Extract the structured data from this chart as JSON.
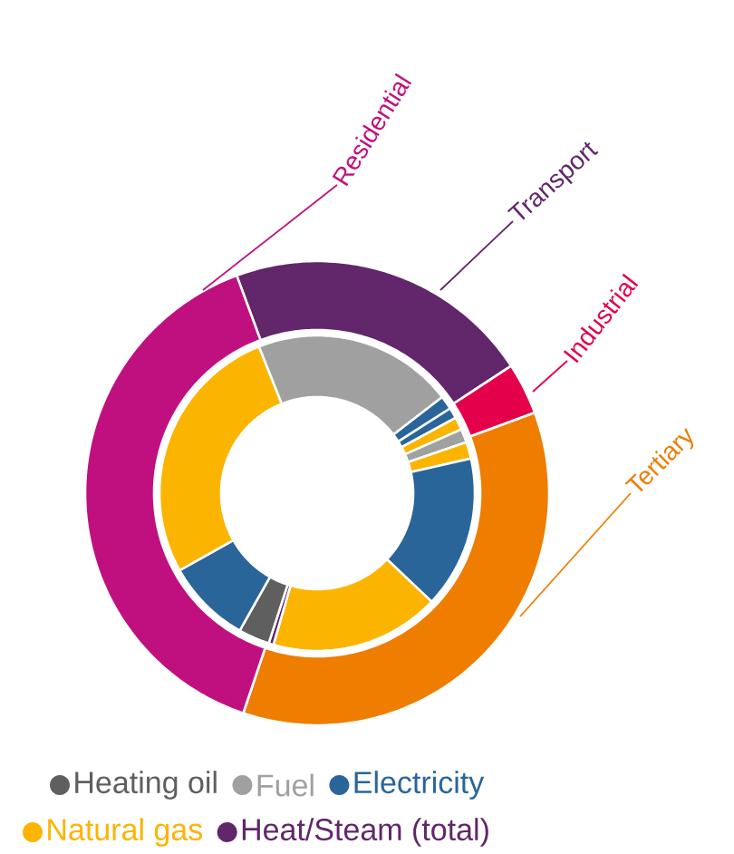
{
  "chart_data": [
    {
      "type": "donut",
      "categories": [
        "Transport",
        "Industrial",
        "Tertiary",
        "Residential"
      ],
      "values": [
        21.4,
        3.6,
        35.8,
        39.2
      ],
      "colors": [
        "#62266b",
        "#e4004b",
        "#ee7d00",
        "#c0107f"
      ]
    },
    {
      "type": "donut",
      "legend": "bottom",
      "categories": [
        "Fuel",
        "Electricity",
        null,
        "Natural gas",
        null,
        null,
        null,
        null,
        "Heat/Steam (total)",
        "Heating oil",
        null,
        null
      ],
      "values": [
        20.6,
        1.4,
        1.1,
        1.3,
        1.4,
        1.7,
        15.6,
        17.4,
        0.5,
        3.2,
        8.7,
        27.1
      ],
      "colors": [
        "#a0a0a0",
        "#2a6599",
        "#2a6599",
        "#fbb400",
        "#a0a0a0",
        "#fbb400",
        "#2a6599",
        "#fbb400",
        "#62266b",
        "#5f5f5f",
        "#2a6599",
        "#fbb400"
      ]
    }
  ]
}
